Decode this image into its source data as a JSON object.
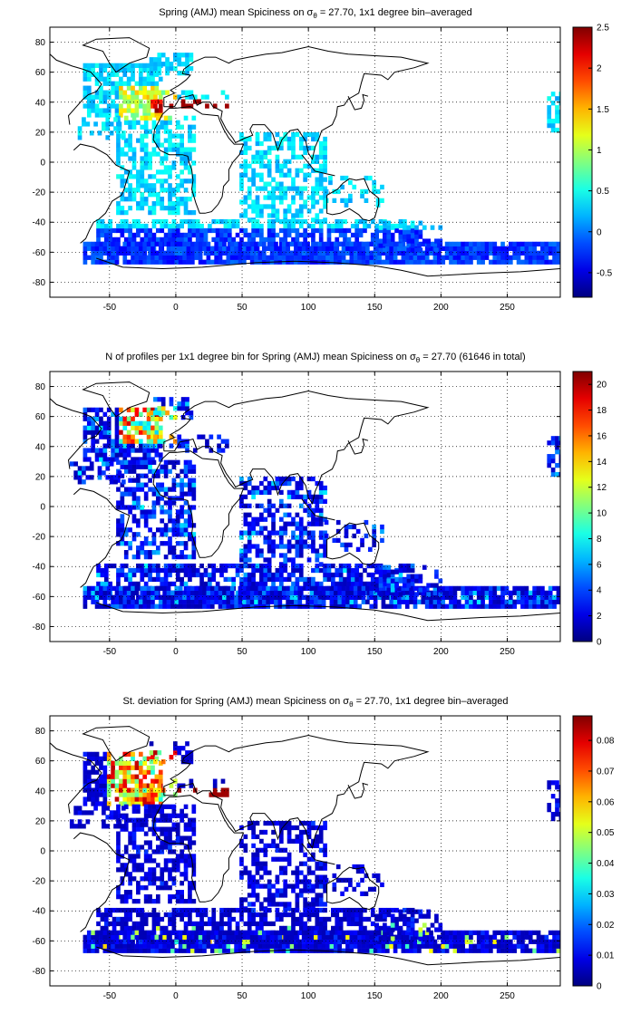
{
  "colors": {
    "land_outline": "#000000",
    "grid": "#000000",
    "background": "#ffffff"
  },
  "chart_data": [
    {
      "type": "heatmap",
      "title": {
        "prefix": "Spring (AMJ) mean Spiciness on ",
        "sigma": "σ",
        "sub": "θ",
        "suffix": " = 27.70, 1x1 degree bin–averaged"
      },
      "x_ticks": [
        -50,
        0,
        50,
        100,
        150,
        200,
        250
      ],
      "y_ticks": [
        80,
        60,
        40,
        20,
        0,
        -20,
        -40,
        -60,
        -80
      ],
      "xlim": [
        -95,
        290
      ],
      "ylim": [
        -90,
        90
      ],
      "grid": true,
      "colorscale": "jet",
      "colorbar": {
        "min": -0.8,
        "max": 2.5,
        "ticks": [
          2.5,
          2,
          1.5,
          1,
          0.5,
          0,
          -0.5
        ]
      }
    },
    {
      "type": "heatmap",
      "title": {
        "prefix": "N of profiles per 1x1 degree bin for Spring (AMJ) mean Spiciness on ",
        "sigma": "σ",
        "sub": "θ",
        "suffix": " = 27.70 (61646 in total)"
      },
      "x_ticks": [
        -50,
        0,
        50,
        100,
        150,
        200,
        250
      ],
      "y_ticks": [
        80,
        60,
        40,
        20,
        0,
        -20,
        -40,
        -60,
        -80
      ],
      "xlim": [
        -95,
        290
      ],
      "ylim": [
        -90,
        90
      ],
      "grid": true,
      "colorscale": "jet",
      "colorbar": {
        "min": 0,
        "max": 21,
        "ticks": [
          20,
          18,
          16,
          14,
          12,
          10,
          8,
          6,
          4,
          2,
          0
        ]
      }
    },
    {
      "type": "heatmap",
      "title": {
        "prefix": "St. deviation for Spring (AMJ) mean Spiciness on ",
        "sigma": "σ",
        "sub": "θ",
        "suffix": " = 27.70, 1x1 degree bin–averaged"
      },
      "x_ticks": [
        -50,
        0,
        50,
        100,
        150,
        200,
        250
      ],
      "y_ticks": [
        80,
        60,
        40,
        20,
        0,
        -20,
        -40,
        -60,
        -80
      ],
      "xlim": [
        -95,
        290
      ],
      "ylim": [
        -90,
        90
      ],
      "grid": true,
      "colorscale": "jet",
      "colorbar": {
        "min": 0,
        "max": 0.088,
        "ticks": [
          0.08,
          0.07,
          0.06,
          0.05,
          0.04,
          0.03,
          0.02,
          0.01,
          0
        ]
      }
    }
  ]
}
